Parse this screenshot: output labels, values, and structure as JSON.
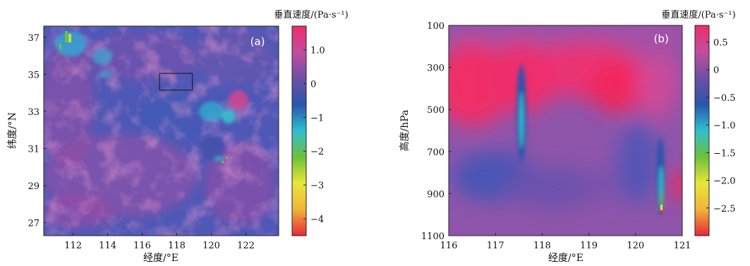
{
  "chart_data": [
    {
      "type": "heatmap",
      "panel_label": "(a)",
      "xlabel": "经度/°E",
      "ylabel": "纬度/°N",
      "xlim": [
        110.3,
        123.9
      ],
      "ylim": [
        26.3,
        37.6
      ],
      "x_ticks": [
        "112",
        "114",
        "116",
        "118",
        "120",
        "122"
      ],
      "y_ticks": [
        "27",
        "29",
        "31",
        "33",
        "35",
        "37"
      ],
      "colorbar_title": "垂直速度/(Pa·s⁻¹)",
      "colorbar_range": [
        -4.5,
        1.7
      ],
      "colorbar_ticks": [
        "1.0",
        "0",
        "−1",
        "−2",
        "−3",
        "−4"
      ],
      "colormap": [
        "#e8273a",
        "#f0b43a",
        "#e8e63a",
        "#6cc13a",
        "#2fbfcf",
        "#2a55ad",
        "#6e4fa5",
        "#c24d9e",
        "#ee2d6c"
      ],
      "highlight_box": {
        "lon": [
          117.0,
          118.9
        ],
        "lat": [
          34.15,
          35.05
        ]
      }
    },
    {
      "type": "heatmap",
      "panel_label": "(b)",
      "xlabel": "经度/°E",
      "ylabel": "高度/hPa",
      "xlim": [
        116,
        121
      ],
      "ylim": [
        1100,
        100
      ],
      "x_ticks": [
        "116",
        "117",
        "118",
        "119",
        "120",
        "121"
      ],
      "y_ticks": [
        "100",
        "300",
        "500",
        "700",
        "900",
        "1100"
      ],
      "colorbar_title": "垂直速度/(Pa·s⁻¹)",
      "colorbar_range": [
        -3.0,
        0.8
      ],
      "colorbar_ticks": [
        "0.5",
        "0",
        "−0.5",
        "−1.0",
        "−1.5",
        "−2.0",
        "−2.5"
      ],
      "colormap": [
        "#e8273a",
        "#f0b43a",
        "#e8e63a",
        "#6cc13a",
        "#2fbfcf",
        "#2a55ad",
        "#6e4fa5",
        "#c24d9e",
        "#ee2d6c"
      ]
    }
  ]
}
